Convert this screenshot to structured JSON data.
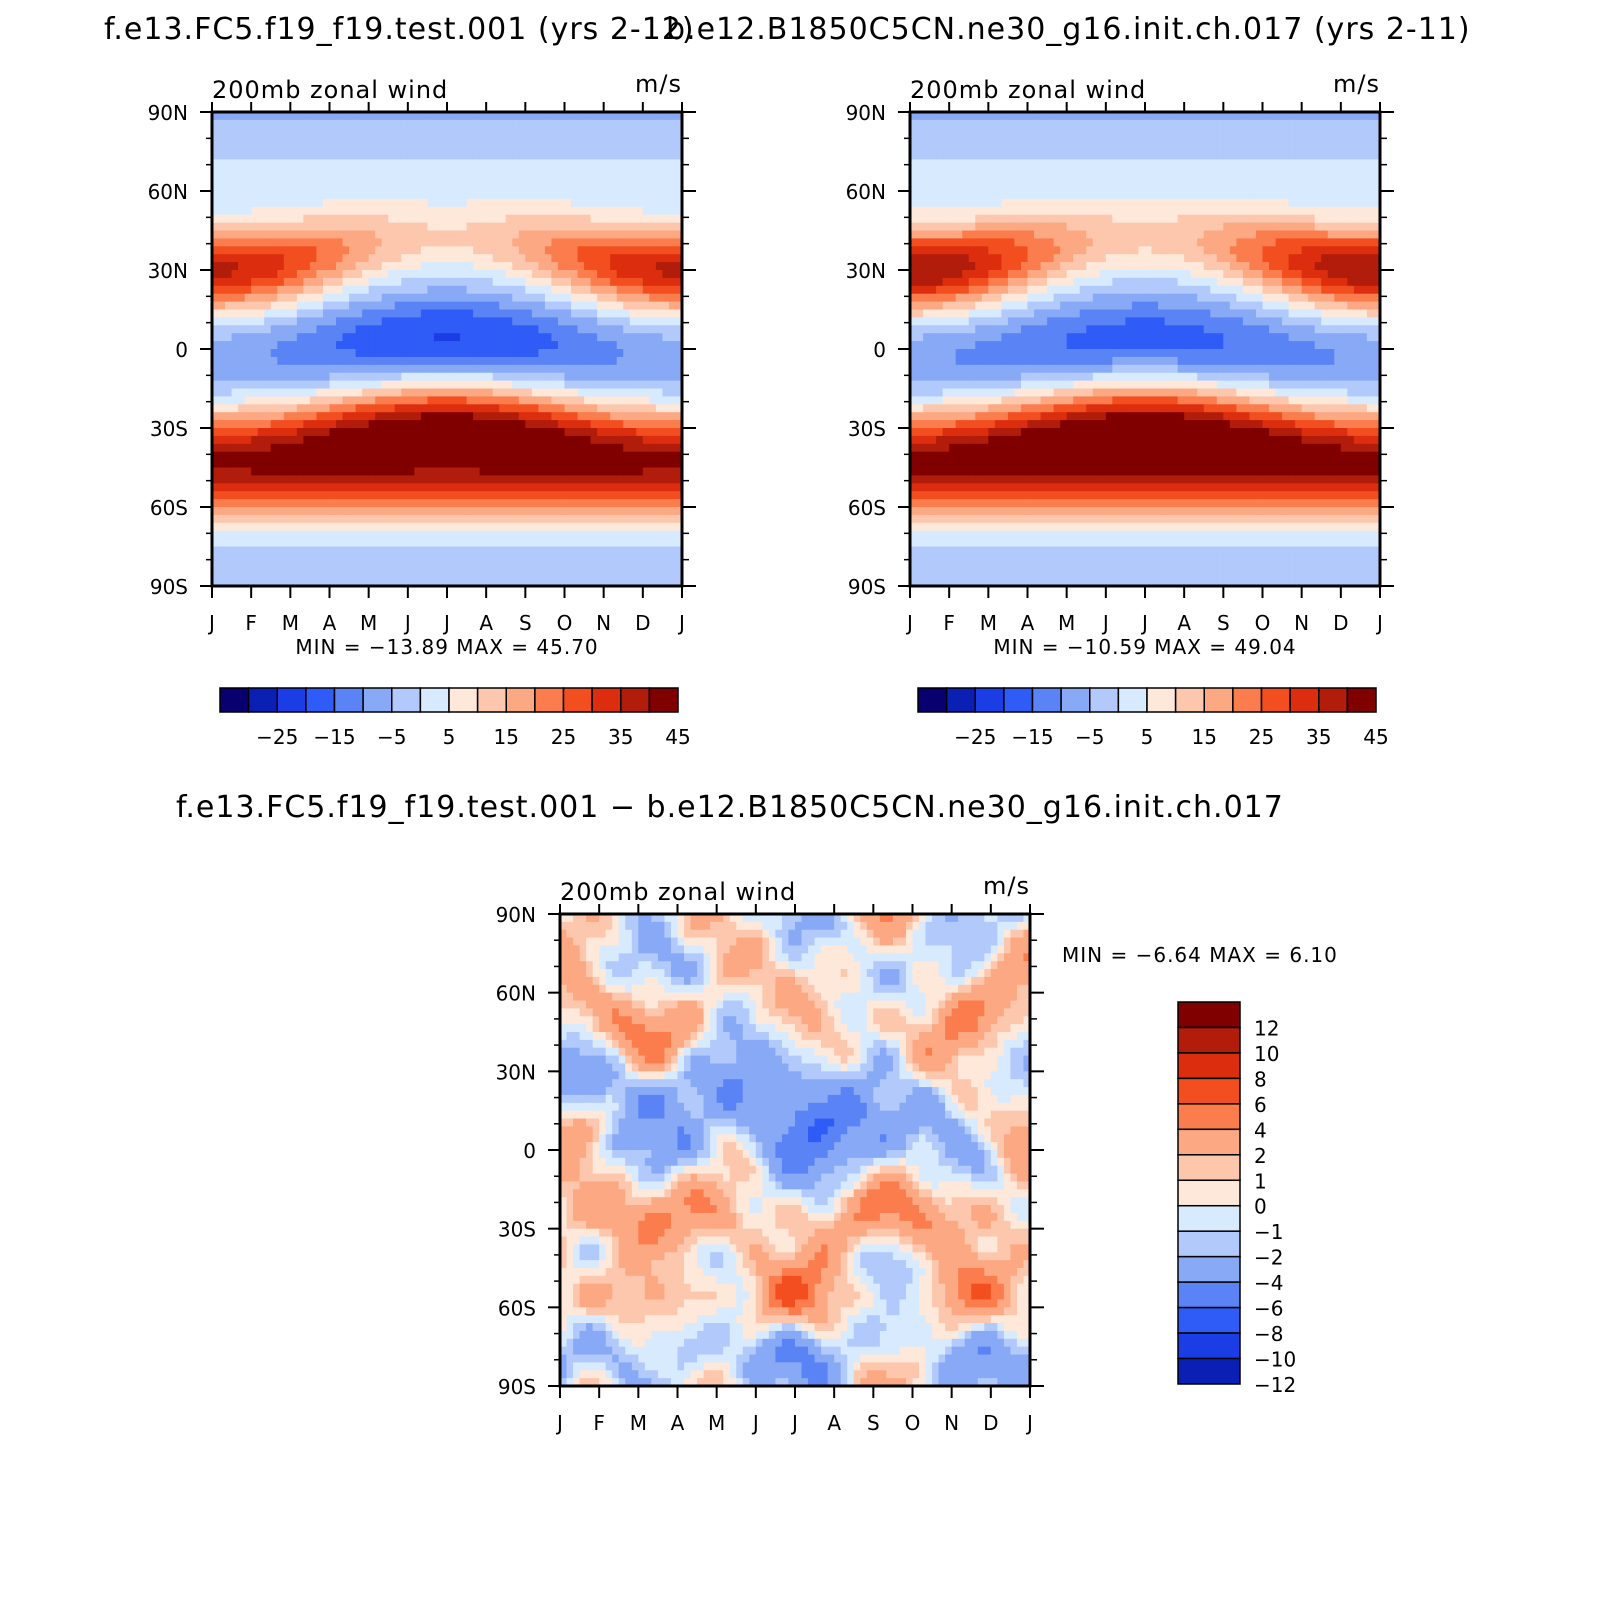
{
  "page": {
    "title_top_left": "f.e13.FC5.f19_f19.test.001 (yrs 2-12)",
    "title_top_right": "b.e12.B1850C5CN.ne30_g16.init.ch.017 (yrs 2-11)",
    "title_bottom": "f.e13.FC5.f19_f19.test.001 − b.e12.B1850C5CN.ne30_g16.init.ch.017"
  },
  "colors": {
    "main_scale": [
      "#08006e",
      "#0a1fb4",
      "#1a3de6",
      "#2f5bf7",
      "#5a84f5",
      "#88a9f5",
      "#b1c9fb",
      "#d8eafd",
      "#fde8da",
      "#fcc7ad",
      "#fca882",
      "#fb7c4c",
      "#f24e1f",
      "#dc2e0e",
      "#b11d0a",
      "#800000"
    ],
    "diff_scale": [
      "#08006e",
      "#0a1fb4",
      "#1a3de6",
      "#2f5bf7",
      "#5a84f5",
      "#88a9f5",
      "#b1c9fb",
      "#d8eafd",
      "#fde8da",
      "#fcc7ad",
      "#fca882",
      "#fb7c4c",
      "#f24e1f",
      "#dc2e0e",
      "#b11d0a",
      "#800000"
    ]
  },
  "chart_data": [
    {
      "type": "heatmap",
      "id": "top-left",
      "title": "f.e13.FC5.f19_f19.test.001 (yrs 2-12)",
      "subtitle": "200mb zonal wind",
      "units": "m/s",
      "x_ticks": [
        "J",
        "F",
        "M",
        "A",
        "M",
        "J",
        "J",
        "A",
        "S",
        "O",
        "N",
        "D",
        "J"
      ],
      "y_ticks": [
        "90N",
        "60N",
        "30N",
        "0",
        "30S",
        "60S",
        "90S"
      ],
      "stats": "MIN = −13.89 MAX = 45.70",
      "min": -13.89,
      "max": 45.7,
      "colorbar_levels": [
        -30,
        -25,
        -20,
        -15,
        -10,
        -5,
        0,
        5,
        10,
        15,
        20,
        25,
        30,
        35,
        40,
        45,
        50
      ],
      "colorbar_labels": [
        "−25",
        "−15",
        "−5",
        "5",
        "15",
        "25",
        "35",
        "45"
      ],
      "nh_jet": {
        "lat": 30,
        "winter_peak": 43,
        "summer_peak": 17,
        "width": 12
      },
      "sh_jet": {
        "lat": -30,
        "winter_peak": 46,
        "summer_peak": 26,
        "width": 12
      },
      "sh_polar": {
        "lat": -50,
        "peak": 30,
        "width": 13
      },
      "equator_easterly": {
        "lat": 5,
        "summer_peak": -14,
        "winter_peak": -3,
        "width": 10
      }
    },
    {
      "type": "heatmap",
      "id": "top-right",
      "title": "b.e12.B1850C5CN.ne30_g16.init.ch.017 (yrs 2-11)",
      "subtitle": "200mb zonal wind",
      "units": "m/s",
      "x_ticks": [
        "J",
        "F",
        "M",
        "A",
        "M",
        "J",
        "J",
        "A",
        "S",
        "O",
        "N",
        "D",
        "J"
      ],
      "y_ticks": [
        "90N",
        "60N",
        "30N",
        "0",
        "30S",
        "60S",
        "90S"
      ],
      "stats": "MIN = −10.59 MAX = 49.04",
      "min": -10.59,
      "max": 49.04,
      "colorbar_levels": [
        -30,
        -25,
        -20,
        -15,
        -10,
        -5,
        0,
        5,
        10,
        15,
        20,
        25,
        30,
        35,
        40,
        45,
        50
      ],
      "colorbar_labels": [
        "−25",
        "−15",
        "−5",
        "5",
        "15",
        "25",
        "35",
        "45"
      ],
      "nh_jet": {
        "lat": 30,
        "winter_peak": 47,
        "summer_peak": 18,
        "width": 12
      },
      "sh_jet": {
        "lat": -30,
        "winter_peak": 47,
        "summer_peak": 27,
        "width": 12
      },
      "sh_polar": {
        "lat": -50,
        "peak": 30,
        "width": 13
      },
      "equator_easterly": {
        "lat": 4,
        "summer_peak": -11,
        "winter_peak": -4,
        "width": 10
      }
    },
    {
      "type": "heatmap",
      "id": "bottom-diff",
      "title": "f.e13.FC5.f19_f19.test.001 − b.e12.B1850C5CN.ne30_g16.init.ch.017",
      "subtitle": "200mb zonal wind",
      "units": "m/s",
      "x_ticks": [
        "J",
        "F",
        "M",
        "A",
        "M",
        "J",
        "J",
        "A",
        "S",
        "O",
        "N",
        "D",
        "J"
      ],
      "y_ticks": [
        "90N",
        "60N",
        "30N",
        "0",
        "30S",
        "60S",
        "90S"
      ],
      "stats": "MIN = −6.64 MAX = 6.10",
      "min": -6.64,
      "max": 6.1,
      "colorbar_levels": [
        -14,
        -12,
        -10,
        -8,
        -6,
        -4,
        -2,
        -1,
        0,
        1,
        2,
        4,
        6,
        8,
        10,
        12,
        14
      ],
      "colorbar_labels": [
        "12",
        "10",
        "8",
        "6",
        "4",
        "2",
        "1",
        "0",
        "−1",
        "−2",
        "−4",
        "−6",
        "−8",
        "−10",
        "−12"
      ]
    }
  ]
}
